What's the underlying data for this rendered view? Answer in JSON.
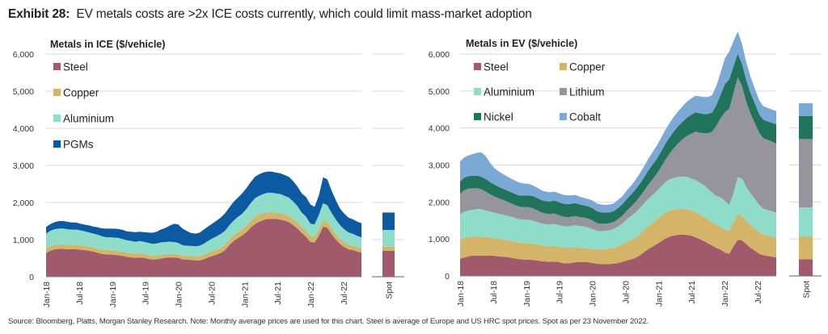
{
  "header": {
    "exhibit_label": "Exhibit 28:",
    "title": "EV metals costs are >2x ICE costs currently, which could limit mass-market adoption"
  },
  "footer": {
    "source": "Source: Bloomberg, Platts, Morgan Stanley Research. Note: Monthly average prices are used for this chart. Steel is average of Europe and US HRC spot prices. Spot as per 23 November 2022."
  },
  "colors": {
    "Steel": "#a15a6b",
    "Copper": "#d4b468",
    "Aluminium": "#8fdcc8",
    "PGMs": "#0b5aa2",
    "Lithium": "#96959b",
    "Nickel": "#21735c",
    "Cobalt": "#7ba8d4",
    "grid": "#d9d9d9",
    "axis": "#7f7f7f"
  },
  "chart_data": [
    {
      "type": "area",
      "stacked": true,
      "title": "Metals in ICE ($/vehicle)",
      "xlabel": "",
      "ylabel": "",
      "ylim": [
        0,
        6000
      ],
      "yticks": [
        0,
        1000,
        2000,
        3000,
        4000,
        5000,
        6000
      ],
      "ytick_labels": [
        "0",
        "1,000",
        "2,000",
        "3,000",
        "4,000",
        "5,000",
        "6,000"
      ],
      "x_start": "Jan-18",
      "x_end": "Oct-22",
      "xtick_labels": [
        "Jan-18",
        "Jul-18",
        "Jan-19",
        "Jul-19",
        "Jan-20",
        "Jul-20",
        "Jan-21",
        "Jul-21",
        "Jan-22",
        "Jul-22"
      ],
      "grid": true,
      "legend_position": "top-left",
      "series": [
        {
          "name": "Steel",
          "values": [
            640,
            700,
            740,
            750,
            750,
            740,
            740,
            740,
            730,
            720,
            700,
            680,
            650,
            620,
            600,
            600,
            590,
            580,
            560,
            540,
            520,
            510,
            520,
            510,
            480,
            460,
            470,
            490,
            510,
            520,
            520,
            510,
            470,
            460,
            450,
            440,
            440,
            470,
            520,
            560,
            600,
            640,
            720,
            850,
            960,
            1040,
            1110,
            1200,
            1320,
            1420,
            1480,
            1530,
            1560,
            1560,
            1560,
            1540,
            1510,
            1470,
            1390,
            1300,
            1180,
            1080,
            940,
            920,
            1100,
            1350,
            1320,
            1150,
            1000,
            880,
            800,
            740,
            720,
            680,
            650
          ]
        },
        {
          "name": "Copper",
          "values": [
            120,
            120,
            120,
            120,
            120,
            120,
            120,
            120,
            120,
            115,
            115,
            115,
            115,
            115,
            115,
            115,
            115,
            115,
            110,
            110,
            110,
            110,
            110,
            110,
            110,
            105,
            105,
            105,
            95,
            95,
            95,
            100,
            100,
            105,
            110,
            110,
            115,
            120,
            125,
            130,
            130,
            135,
            140,
            145,
            150,
            160,
            165,
            175,
            180,
            190,
            190,
            190,
            185,
            180,
            175,
            175,
            170,
            170,
            165,
            160,
            155,
            160,
            160,
            160,
            165,
            170,
            165,
            150,
            140,
            130,
            125,
            120,
            115,
            115,
            110
          ]
        },
        {
          "name": "Aluminium",
          "values": [
            400,
            420,
            420,
            430,
            430,
            420,
            410,
            410,
            400,
            390,
            380,
            370,
            370,
            360,
            350,
            350,
            350,
            350,
            340,
            330,
            330,
            320,
            330,
            320,
            320,
            320,
            320,
            330,
            330,
            330,
            320,
            300,
            280,
            270,
            270,
            270,
            280,
            300,
            320,
            340,
            360,
            380,
            380,
            390,
            400,
            410,
            420,
            450,
            480,
            500,
            510,
            510,
            520,
            520,
            510,
            510,
            500,
            490,
            470,
            440,
            390,
            380,
            330,
            330,
            400,
            460,
            440,
            420,
            400,
            380,
            350,
            330,
            320,
            310,
            300
          ]
        },
        {
          "name": "PGMs",
          "values": [
            180,
            180,
            190,
            200,
            200,
            200,
            190,
            190,
            180,
            180,
            190,
            190,
            200,
            210,
            230,
            230,
            240,
            240,
            250,
            240,
            250,
            260,
            250,
            260,
            280,
            300,
            320,
            350,
            380,
            430,
            490,
            500,
            450,
            400,
            350,
            340,
            350,
            380,
            390,
            400,
            420,
            440,
            470,
            480,
            510,
            520,
            550,
            560,
            570,
            580,
            580,
            580,
            570,
            570,
            560,
            560,
            560,
            560,
            550,
            530,
            520,
            530,
            520,
            470,
            520,
            700,
            700,
            600,
            520,
            440,
            420,
            400,
            390,
            380,
            380
          ]
        }
      ],
      "spot": {
        "label": "Spot",
        "values": {
          "Steel": 700,
          "Copper": 110,
          "Aluminium": 450,
          "PGMs": 470
        }
      }
    },
    {
      "type": "area",
      "stacked": true,
      "title": "Metals in EV ($/vehicle)",
      "xlabel": "",
      "ylabel": "",
      "ylim": [
        0,
        6000
      ],
      "yticks": [
        0,
        1000,
        2000,
        3000,
        4000,
        5000,
        6000
      ],
      "ytick_labels": [
        "0",
        "1,000",
        "2,000",
        "3,000",
        "4,000",
        "5,000",
        "6,000"
      ],
      "x_start": "Jan-18",
      "x_end": "Oct-22",
      "xtick_labels": [
        "Jan-18",
        "Jul-18",
        "Jan-19",
        "Jul-19",
        "Jan-20",
        "Jul-20",
        "Jan-21",
        "Jul-21",
        "Jan-22",
        "Jul-22"
      ],
      "grid": true,
      "legend_position": "top-left",
      "series": [
        {
          "name": "Steel",
          "values": [
            460,
            500,
            530,
            550,
            550,
            550,
            550,
            550,
            540,
            530,
            520,
            510,
            490,
            470,
            450,
            440,
            440,
            430,
            420,
            400,
            390,
            380,
            390,
            380,
            350,
            340,
            350,
            370,
            380,
            380,
            370,
            350,
            330,
            320,
            320,
            320,
            330,
            350,
            380,
            420,
            450,
            480,
            550,
            640,
            720,
            790,
            860,
            930,
            1010,
            1060,
            1090,
            1110,
            1120,
            1110,
            1090,
            1050,
            1000,
            950,
            880,
            820,
            760,
            710,
            630,
            600,
            800,
            980,
            960,
            860,
            760,
            680,
            600,
            560,
            540,
            520,
            500
          ]
        },
        {
          "name": "Copper",
          "values": [
            520,
            520,
            520,
            520,
            520,
            510,
            500,
            490,
            480,
            470,
            470,
            460,
            460,
            450,
            450,
            450,
            450,
            440,
            430,
            430,
            420,
            420,
            420,
            420,
            420,
            420,
            420,
            410,
            380,
            370,
            370,
            380,
            390,
            400,
            410,
            420,
            430,
            450,
            470,
            500,
            520,
            540,
            570,
            590,
            620,
            640,
            660,
            680,
            690,
            700,
            700,
            700,
            690,
            690,
            680,
            680,
            670,
            660,
            650,
            630,
            620,
            620,
            620,
            620,
            650,
            680,
            670,
            640,
            620,
            600,
            580,
            560,
            550,
            550,
            540
          ]
        },
        {
          "name": "Aluminium",
          "values": [
            680,
            720,
            720,
            720,
            740,
            740,
            720,
            700,
            690,
            680,
            670,
            660,
            650,
            640,
            630,
            630,
            630,
            630,
            610,
            590,
            590,
            590,
            600,
            580,
            580,
            580,
            580,
            590,
            590,
            590,
            570,
            540,
            500,
            490,
            490,
            500,
            510,
            540,
            570,
            610,
            650,
            690,
            700,
            720,
            740,
            760,
            770,
            800,
            830,
            850,
            860,
            870,
            880,
            880,
            870,
            870,
            860,
            850,
            830,
            800,
            780,
            790,
            780,
            700,
            800,
            1010,
            1000,
            900,
            850,
            800,
            740,
            700,
            690,
            680,
            670
          ]
        },
        {
          "name": "Lithium",
          "values": [
            560,
            580,
            590,
            580,
            560,
            540,
            510,
            470,
            440,
            420,
            400,
            380,
            360,
            350,
            340,
            340,
            340,
            330,
            320,
            300,
            290,
            280,
            280,
            270,
            260,
            250,
            250,
            250,
            240,
            240,
            240,
            230,
            210,
            200,
            190,
            190,
            190,
            200,
            210,
            230,
            250,
            280,
            310,
            340,
            380,
            420,
            470,
            520,
            600,
            690,
            800,
            900,
            1000,
            1100,
            1200,
            1300,
            1350,
            1400,
            1500,
            1650,
            1900,
            2150,
            2400,
            2600,
            2700,
            2700,
            2500,
            2300,
            2150,
            2050,
            1950,
            1900,
            1900,
            1880,
            1870
          ]
        },
        {
          "name": "Nickel",
          "values": [
            330,
            340,
            340,
            340,
            340,
            340,
            340,
            330,
            320,
            310,
            300,
            300,
            300,
            300,
            300,
            310,
            320,
            330,
            330,
            330,
            330,
            340,
            350,
            350,
            350,
            350,
            350,
            350,
            340,
            330,
            330,
            330,
            320,
            310,
            300,
            290,
            290,
            300,
            310,
            320,
            330,
            340,
            350,
            360,
            380,
            390,
            400,
            420,
            430,
            440,
            450,
            460,
            470,
            490,
            510,
            520,
            520,
            520,
            520,
            520,
            560,
            640,
            760,
            800,
            720,
            640,
            600,
            590,
            560,
            530,
            500,
            500,
            500,
            510,
            520
          ]
        },
        {
          "name": "Cobalt",
          "values": [
            540,
            550,
            560,
            590,
            620,
            660,
            620,
            520,
            450,
            420,
            400,
            380,
            370,
            360,
            350,
            330,
            310,
            290,
            280,
            270,
            260,
            250,
            240,
            240,
            240,
            240,
            230,
            220,
            210,
            200,
            200,
            210,
            210,
            210,
            210,
            210,
            210,
            220,
            220,
            230,
            240,
            260,
            280,
            300,
            320,
            340,
            360,
            370,
            380,
            390,
            400,
            410,
            420,
            430,
            440,
            450,
            460,
            460,
            460,
            470,
            520,
            600,
            700,
            750,
            680,
            600,
            540,
            480,
            440,
            400,
            380,
            370,
            360,
            360,
            360
          ]
        }
      ],
      "spot": {
        "label": "Spot",
        "values": {
          "Steel": 450,
          "Copper": 620,
          "Aluminium": 780,
          "Lithium": 1850,
          "Nickel": 620,
          "Cobalt": 350
        }
      }
    }
  ]
}
